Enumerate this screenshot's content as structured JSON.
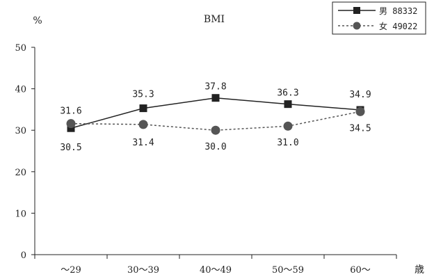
{
  "chart_data": {
    "type": "line",
    "title": "BMI",
    "ylabel": "%",
    "xlabel": "歳",
    "categories": [
      "～29",
      "30～39",
      "40～49",
      "50～59",
      "60～"
    ],
    "ylim": [
      0,
      50
    ],
    "yticks": [
      0,
      10,
      20,
      30,
      40,
      50
    ],
    "grid": false,
    "legend_position": "top-right",
    "series": [
      {
        "name": "男 88332",
        "marker": "square",
        "line": "solid",
        "color": "#222222",
        "values": [
          30.5,
          35.3,
          37.8,
          36.3,
          34.9
        ],
        "labels": [
          "30.5",
          "35.3",
          "37.8",
          "36.3",
          "34.9"
        ]
      },
      {
        "name": "女 49022",
        "marker": "circle",
        "line": "dashed",
        "color": "#555555",
        "values": [
          31.6,
          31.4,
          30.0,
          31.0,
          34.5
        ],
        "labels": [
          "31.6",
          "31.4",
          "30.0",
          "31.0",
          "34.5"
        ]
      }
    ]
  }
}
